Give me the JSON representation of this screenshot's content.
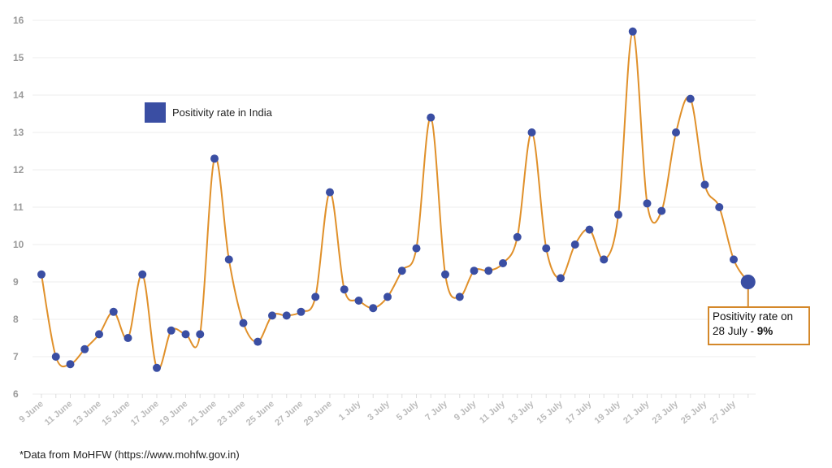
{
  "chart_data": {
    "type": "line",
    "title": "",
    "xlabel": "",
    "ylabel": "",
    "ylim": [
      6,
      16
    ],
    "yticks": [
      6,
      7,
      8,
      9,
      10,
      11,
      12,
      13,
      14,
      15,
      16
    ],
    "grid": true,
    "legend_placement": "top-left",
    "categories": [
      "9 June",
      "10 June",
      "11 June",
      "12 June",
      "13 June",
      "14 June",
      "15 June",
      "16 June",
      "17 June",
      "18 June",
      "19 June",
      "20 June",
      "21 June",
      "22 June",
      "23 June",
      "24 June",
      "25 June",
      "26 June",
      "27 June",
      "28 June",
      "29 June",
      "30 June",
      "1 July",
      "2 July",
      "3 July",
      "4 July",
      "5 July",
      "6 July",
      "7 July",
      "8 July",
      "9 July",
      "10 July",
      "11 July",
      "12 July",
      "13 July",
      "14 July",
      "15 July",
      "16 July",
      "17 July",
      "18 July",
      "19 July",
      "20 July",
      "21 July",
      "22 July",
      "23 July",
      "24 July",
      "25 July",
      "26 July",
      "27 July",
      "28 July"
    ],
    "xtick_labels": [
      "9 June",
      "11 June",
      "13 June",
      "15 June",
      "17 June",
      "19 June",
      "21 June",
      "23 June",
      "25 June",
      "27 June",
      "29 June",
      "1 July",
      "3 July",
      "5 July",
      "7 July",
      "9 July",
      "11 July",
      "13 July",
      "15 July",
      "17 July",
      "19 July",
      "21 July",
      "23 July",
      "25 July",
      "27 July"
    ],
    "series": [
      {
        "name": "Positivity rate in India",
        "values": [
          9.2,
          7.0,
          6.8,
          7.2,
          7.6,
          8.2,
          7.5,
          9.2,
          6.7,
          7.7,
          7.6,
          7.6,
          12.3,
          9.6,
          7.9,
          7.4,
          8.1,
          8.1,
          8.2,
          8.6,
          11.4,
          8.8,
          8.5,
          8.3,
          8.6,
          9.3,
          9.9,
          13.4,
          9.2,
          8.6,
          9.3,
          9.3,
          9.5,
          10.2,
          13.0,
          9.9,
          9.1,
          10.0,
          10.4,
          9.6,
          10.8,
          15.7,
          11.1,
          10.9,
          13.0,
          13.9,
          11.6,
          11.0,
          9.6,
          9.0
        ]
      }
    ],
    "colors": {
      "line": "#e0902a",
      "marker": "#3a4ea3",
      "callout_border": "#d4882a",
      "grid": "#ececec"
    },
    "annotation": {
      "line1": "Positivity rate on",
      "line2_prefix": "28 July - ",
      "line2_bold": "9%"
    }
  },
  "legend": {
    "label": "Positivity rate in India"
  },
  "source_note": "*Data from MoHFW (https://www.mohfw.gov.in)"
}
